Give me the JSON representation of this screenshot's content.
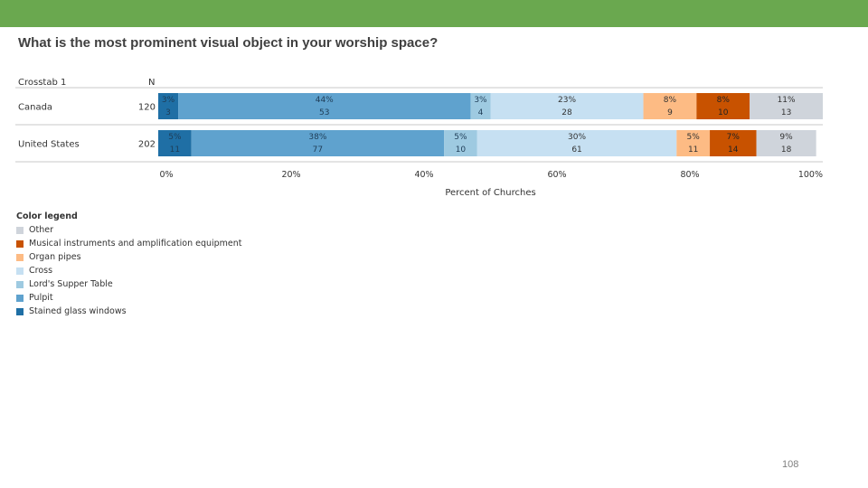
{
  "slide": {
    "title": "What is the most prominent visual object in your worship space?",
    "page_number": "108",
    "accent_color": "#6aa84f"
  },
  "chart_data": {
    "type": "bar",
    "orientation": "horizontal",
    "stacked": true,
    "header": {
      "row_label": "Crosstab 1",
      "n_label": "N"
    },
    "categories": [
      "Canada",
      "United States"
    ],
    "n": [
      "120",
      "202"
    ],
    "xlabel": "Percent of Churches",
    "xlim": [
      0,
      100
    ],
    "xticks": [
      "0%",
      "20%",
      "40%",
      "60%",
      "80%",
      "100%"
    ],
    "series": [
      {
        "name": "Stained glass windows",
        "color": "#1f6fa5",
        "text_color": "#1f3d57",
        "values": [
          3,
          5
        ],
        "labels": [
          "3%",
          "5%"
        ],
        "counts": [
          "3",
          "11"
        ]
      },
      {
        "name": "Pulpit",
        "color": "#5fa2ce",
        "text_color": "#1f3d57",
        "values": [
          44,
          38
        ],
        "labels": [
          "44%",
          "38%"
        ],
        "counts": [
          "53",
          "77"
        ]
      },
      {
        "name": "Lord's Supper Table",
        "color": "#9ecae1",
        "text_color": "#1f3d57",
        "values": [
          3,
          5
        ],
        "labels": [
          "3%",
          "5%"
        ],
        "counts": [
          "4",
          "10"
        ]
      },
      {
        "name": "Cross",
        "color": "#c6e0f2",
        "text_color": "#333333",
        "values": [
          23,
          30
        ],
        "labels": [
          "23%",
          "30%"
        ],
        "counts": [
          "28",
          "61"
        ]
      },
      {
        "name": "Organ pipes",
        "color": "#fdbb84",
        "text_color": "#333333",
        "values": [
          8,
          5
        ],
        "labels": [
          "8%",
          "5%"
        ],
        "counts": [
          "9",
          "11"
        ]
      },
      {
        "name": "Musical instruments and amplification equipment",
        "color": "#c85200",
        "text_color": "#222222",
        "values": [
          8,
          7
        ],
        "labels": [
          "8%",
          "7%"
        ],
        "counts": [
          "10",
          "14"
        ]
      },
      {
        "name": "Other",
        "color": "#cfd4db",
        "text_color": "#333333",
        "values": [
          11,
          9
        ],
        "labels": [
          "11%",
          "9%"
        ],
        "counts": [
          "13",
          "18"
        ]
      }
    ],
    "legend": {
      "title": "Color legend",
      "items": [
        {
          "label": "Other",
          "color": "#cfd4db"
        },
        {
          "label": "Musical instruments and amplification equipment",
          "color": "#c85200"
        },
        {
          "label": "Organ pipes",
          "color": "#fdbb84"
        },
        {
          "label": "Cross",
          "color": "#c6e0f2"
        },
        {
          "label": "Lord's Supper Table",
          "color": "#9ecae1"
        },
        {
          "label": "Pulpit",
          "color": "#5fa2ce"
        },
        {
          "label": "Stained glass windows",
          "color": "#1f6fa5"
        }
      ]
    }
  }
}
